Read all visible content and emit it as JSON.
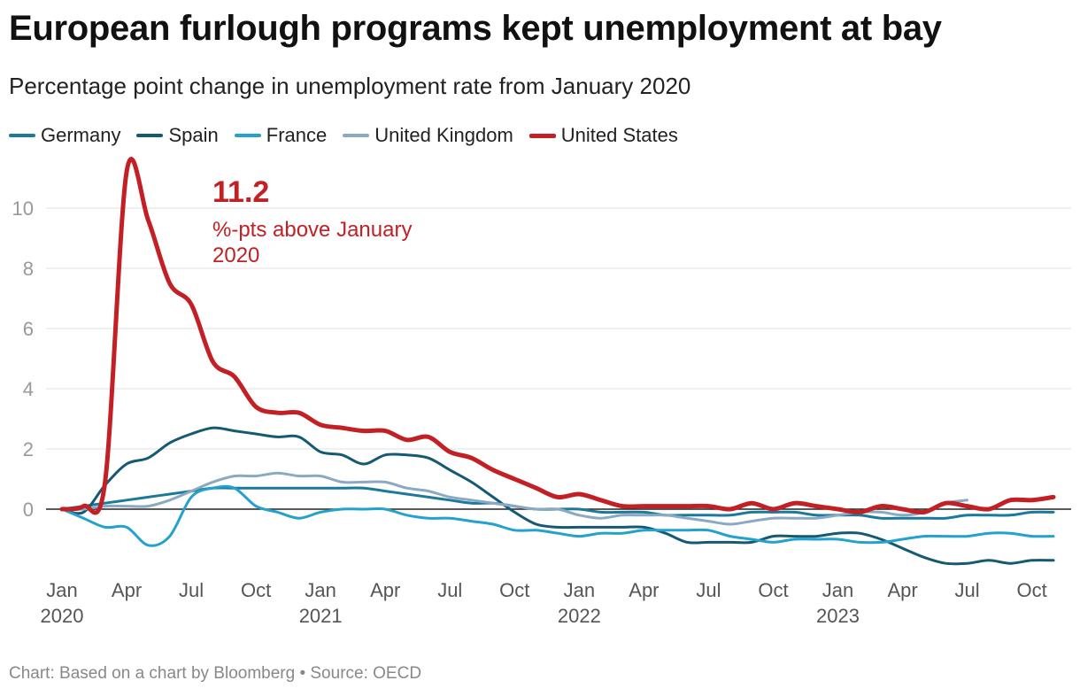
{
  "header": {
    "title": "European furlough programs kept unemployment at bay",
    "subtitle": "Percentage point change in unemployment rate from January 2020"
  },
  "footer": {
    "text": "Chart: Based on a chart by Bloomberg • Source: OECD"
  },
  "annotation": {
    "value": "11.2",
    "text": "%-pts above January 2020"
  },
  "chart_data": {
    "type": "line",
    "title": "European furlough programs kept unemployment at bay",
    "subtitle": "Percentage point change in unemployment rate from January 2020",
    "xlabel": "",
    "ylabel": "",
    "ylim": [
      -2,
      11.5
    ],
    "yticks": [
      0,
      2,
      4,
      6,
      8,
      10
    ],
    "grid": true,
    "legend_position": "top-left",
    "x_start": "2020-01",
    "x_ticks": [
      {
        "index": 0,
        "month": "Jan",
        "year": "2020"
      },
      {
        "index": 3,
        "month": "Apr",
        "year": ""
      },
      {
        "index": 6,
        "month": "Jul",
        "year": ""
      },
      {
        "index": 9,
        "month": "Oct",
        "year": ""
      },
      {
        "index": 12,
        "month": "Jan",
        "year": "2021"
      },
      {
        "index": 15,
        "month": "Apr",
        "year": ""
      },
      {
        "index": 18,
        "month": "Jul",
        "year": ""
      },
      {
        "index": 21,
        "month": "Oct",
        "year": ""
      },
      {
        "index": 24,
        "month": "Jan",
        "year": "2022"
      },
      {
        "index": 27,
        "month": "Apr",
        "year": ""
      },
      {
        "index": 30,
        "month": "Jul",
        "year": ""
      },
      {
        "index": 33,
        "month": "Oct",
        "year": ""
      },
      {
        "index": 36,
        "month": "Jan",
        "year": "2023"
      },
      {
        "index": 39,
        "month": "Apr",
        "year": ""
      },
      {
        "index": 42,
        "month": "Jul",
        "year": ""
      },
      {
        "index": 45,
        "month": "Oct",
        "year": ""
      }
    ],
    "series": [
      {
        "name": "Germany",
        "color": "#1b7a9b",
        "values": [
          0,
          0.1,
          0.2,
          0.3,
          0.4,
          0.5,
          0.6,
          0.7,
          0.7,
          0.7,
          0.7,
          0.7,
          0.7,
          0.7,
          0.7,
          0.6,
          0.5,
          0.4,
          0.3,
          0.2,
          0.2,
          0.1,
          0.0,
          0.0,
          0.0,
          -0.1,
          -0.1,
          -0.1,
          -0.2,
          -0.2,
          -0.2,
          -0.2,
          -0.1,
          -0.1,
          -0.1,
          -0.2,
          -0.2,
          -0.2,
          -0.3,
          -0.3,
          -0.3,
          -0.3,
          -0.2,
          -0.2,
          -0.2,
          -0.1,
          -0.1
        ]
      },
      {
        "name": "Spain",
        "color": "#155a72",
        "values": [
          0,
          -0.1,
          0.8,
          1.5,
          1.7,
          2.2,
          2.5,
          2.7,
          2.6,
          2.5,
          2.4,
          2.4,
          1.9,
          1.8,
          1.5,
          1.8,
          1.8,
          1.7,
          1.3,
          0.9,
          0.4,
          -0.1,
          -0.5,
          -0.6,
          -0.6,
          -0.6,
          -0.6,
          -0.6,
          -0.8,
          -1.1,
          -1.1,
          -1.1,
          -1.1,
          -0.9,
          -0.9,
          -0.9,
          -0.8,
          -0.8,
          -1.0,
          -1.3,
          -1.6,
          -1.8,
          -1.8,
          -1.7,
          -1.8,
          -1.7,
          -1.7
        ]
      },
      {
        "name": "France",
        "color": "#22a2cc",
        "values": [
          0,
          -0.3,
          -0.6,
          -0.6,
          -1.2,
          -0.9,
          0.4,
          0.7,
          0.7,
          0.1,
          -0.1,
          -0.3,
          -0.1,
          0.0,
          0.0,
          0.0,
          -0.2,
          -0.3,
          -0.3,
          -0.4,
          -0.5,
          -0.7,
          -0.7,
          -0.8,
          -0.9,
          -0.8,
          -0.8,
          -0.7,
          -0.7,
          -0.7,
          -0.7,
          -0.9,
          -1.0,
          -1.1,
          -1.0,
          -1.0,
          -1.0,
          -1.1,
          -1.1,
          -1.0,
          -0.9,
          -0.9,
          -0.9,
          -0.8,
          -0.8,
          -0.9,
          -0.9
        ]
      },
      {
        "name": "United Kingdom",
        "color": "#8aa9c2",
        "values": [
          0,
          0.0,
          0.1,
          0.1,
          0.1,
          0.3,
          0.6,
          0.9,
          1.1,
          1.1,
          1.2,
          1.1,
          1.1,
          0.9,
          0.9,
          0.9,
          0.7,
          0.6,
          0.4,
          0.3,
          0.2,
          0.1,
          0.0,
          0.0,
          -0.2,
          -0.3,
          -0.2,
          -0.2,
          -0.2,
          -0.3,
          -0.4,
          -0.5,
          -0.4,
          -0.3,
          -0.3,
          -0.3,
          -0.2,
          -0.1,
          -0.1,
          -0.2,
          -0.1,
          0.2,
          0.3
        ]
      },
      {
        "name": "United States",
        "color": "#c32025",
        "values": [
          0,
          0.1,
          0.9,
          11.2,
          9.6,
          7.5,
          6.8,
          4.9,
          4.4,
          3.4,
          3.2,
          3.2,
          2.8,
          2.7,
          2.6,
          2.6,
          2.3,
          2.4,
          1.9,
          1.7,
          1.3,
          1.0,
          0.7,
          0.4,
          0.5,
          0.3,
          0.1,
          0.1,
          0.1,
          0.1,
          0.1,
          0.0,
          0.2,
          0.0,
          0.2,
          0.1,
          0.0,
          -0.1,
          0.1,
          0.0,
          -0.1,
          0.2,
          0.1,
          0.0,
          0.3,
          0.3,
          0.4
        ]
      }
    ]
  }
}
